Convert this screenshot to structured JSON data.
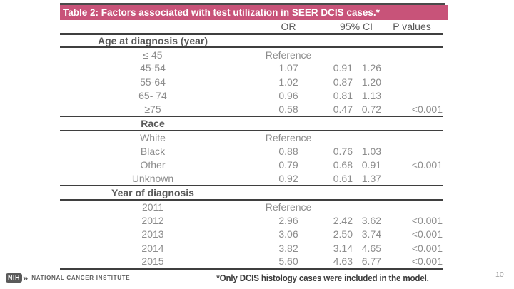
{
  "slide": {
    "title": "Table 2: Factors associated with test utilization in SEER DCIS cases.*",
    "footnote": "*Only DCIS histology cases were included in the model.",
    "page_number": "10"
  },
  "colors": {
    "accent_bar": "#c85379",
    "rule_line": "#3f3f3f",
    "data_text": "#8c8c8c",
    "header_text": "#595959"
  },
  "logo": {
    "abbrev": "NIH",
    "chevron_icon": "double-chevron-right",
    "institute": "NATIONAL CANCER INSTITUTE"
  },
  "table": {
    "headers": {
      "or": "OR",
      "ci": "95% CI",
      "p": "P values"
    },
    "sections": [
      {
        "name": "Age at diagnosis (year)",
        "rows": [
          {
            "label": "≤ 45",
            "or": "Reference",
            "ci_low": "",
            "ci_high": "",
            "p": ""
          },
          {
            "label": "45-54",
            "or": "1.07",
            "ci_low": "0.91",
            "ci_high": "1.26",
            "p": ""
          },
          {
            "label": "55-64",
            "or": "1.02",
            "ci_low": "0.87",
            "ci_high": "1.20",
            "p": ""
          },
          {
            "label": "65- 74",
            "or": "0.96",
            "ci_low": "0.81",
            "ci_high": "1.13",
            "p": ""
          },
          {
            "label": "≥75",
            "or": "0.58",
            "ci_low": "0.47",
            "ci_high": "0.72",
            "p": "<0.001"
          }
        ]
      },
      {
        "name": "Race",
        "rows": [
          {
            "label": "White",
            "or": "Reference",
            "ci_low": "",
            "ci_high": "",
            "p": ""
          },
          {
            "label": "Black",
            "or": "0.88",
            "ci_low": "0.76",
            "ci_high": "1.03",
            "p": ""
          },
          {
            "label": "Other",
            "or": "0.79",
            "ci_low": "0.68",
            "ci_high": "0.91",
            "p": "<0.001"
          },
          {
            "label": "Unknown",
            "or": "0.92",
            "ci_low": "0.61",
            "ci_high": "1.37",
            "p": ""
          }
        ]
      },
      {
        "name": "Year of diagnosis",
        "rows": [
          {
            "label": "2011",
            "or": "Reference",
            "ci_low": "",
            "ci_high": "",
            "p": ""
          },
          {
            "label": "2012",
            "or": "2.96",
            "ci_low": "2.42",
            "ci_high": "3.62",
            "p": "<0.001"
          },
          {
            "label": "2013",
            "or": "3.06",
            "ci_low": "2.50",
            "ci_high": "3.74",
            "p": "<0.001"
          },
          {
            "label": "2014",
            "or": "3.82",
            "ci_low": "3.14",
            "ci_high": "4.65",
            "p": "<0.001"
          },
          {
            "label": "2015",
            "or": "5.60",
            "ci_low": "4.63",
            "ci_high": "6.77",
            "p": "<0.001"
          }
        ]
      }
    ]
  }
}
